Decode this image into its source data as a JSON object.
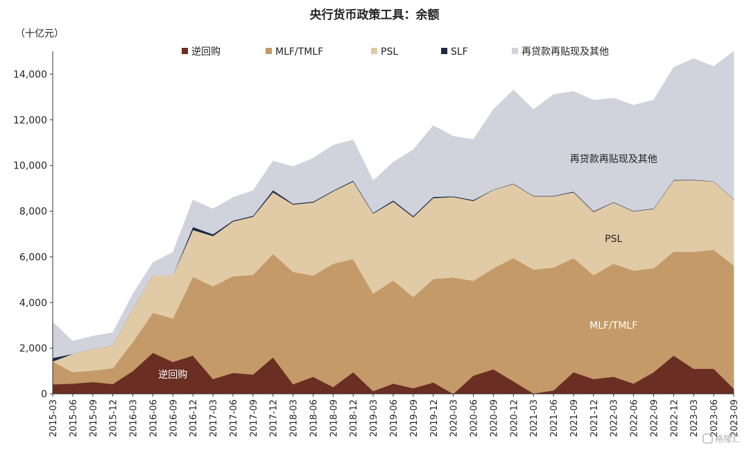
{
  "chart_data": {
    "type": "area",
    "stacked": true,
    "title": "央行货币政策工具：余额",
    "unit_label": "（十亿元）",
    "ylim": [
      0,
      15000
    ],
    "yticks": [
      0,
      2000,
      4000,
      6000,
      8000,
      10000,
      12000,
      14000
    ],
    "ytick_labels": [
      "0",
      "2,000",
      "4,000",
      "6,000",
      "8,000",
      "10,000",
      "12,000",
      "14,000"
    ],
    "x": [
      "2015-03",
      "2015-06",
      "2015-09",
      "2015-12",
      "2016-03",
      "2016-06",
      "2016-09",
      "2016-12",
      "2017-03",
      "2017-06",
      "2017-09",
      "2017-12",
      "2018-03",
      "2018-06",
      "2018-09",
      "2018-12",
      "2019-03",
      "2019-06",
      "2019-09",
      "2019-12",
      "2020-03",
      "2020-06",
      "2020-09",
      "2020-12",
      "2021-03",
      "2021-06",
      "2021-09",
      "2021-12",
      "2022-03",
      "2022-06",
      "2022-09",
      "2022-12",
      "2023-03",
      "2023-06",
      "2023-09"
    ],
    "legend_position": "top",
    "series": [
      {
        "name": "逆回购",
        "color": "#6b2e22",
        "values": [
          420,
          450,
          520,
          430,
          1000,
          1800,
          1400,
          1680,
          650,
          920,
          850,
          1600,
          420,
          750,
          300,
          950,
          120,
          450,
          250,
          500,
          0,
          800,
          1080,
          550,
          20,
          150,
          950,
          650,
          750,
          450,
          950,
          1680,
          1100,
          1100,
          230
        ]
      },
      {
        "name": "MLF/TMLF",
        "color": "#c49a68",
        "values": [
          1000,
          500,
          500,
          700,
          1270,
          1750,
          1900,
          3450,
          4060,
          4230,
          4360,
          4530,
          4920,
          4430,
          5400,
          4950,
          4270,
          4520,
          3990,
          4530,
          5100,
          4150,
          4420,
          5400,
          5420,
          5380,
          5000,
          4550,
          4950,
          4950,
          4550,
          4550,
          5120,
          5210,
          5390
        ]
      },
      {
        "name": "PSL",
        "color": "#e1cba7",
        "values": [
          0,
          800,
          950,
          1000,
          1500,
          1650,
          1900,
          2050,
          2200,
          2400,
          2550,
          2700,
          2950,
          3200,
          3170,
          3400,
          3510,
          3450,
          3500,
          3550,
          3520,
          3500,
          3440,
          3240,
          3210,
          3120,
          2880,
          2770,
          2680,
          2590,
          2600,
          3120,
          3140,
          2990,
          2900
        ]
      },
      {
        "name": "SLF",
        "color": "#1b2a44",
        "values": [
          150,
          0,
          0,
          0,
          0,
          0,
          0,
          130,
          80,
          40,
          40,
          90,
          40,
          40,
          30,
          40,
          30,
          50,
          50,
          50,
          30,
          40,
          10,
          20,
          20,
          20,
          30,
          30,
          20,
          20,
          20,
          20,
          20,
          10,
          10
        ]
      },
      {
        "name": "再贷款再贴现及其他",
        "color": "#d0d3dc",
        "values": [
          1570,
          560,
          560,
          550,
          600,
          550,
          1000,
          1180,
          1110,
          1010,
          1100,
          1280,
          1620,
          1900,
          1990,
          1780,
          1400,
          1680,
          2900,
          3120,
          2630,
          2650,
          3500,
          4100,
          3780,
          4430,
          4390,
          4860,
          4550,
          4630,
          4750,
          4930,
          5300,
          5030,
          6470
        ]
      }
    ],
    "annotations": [
      {
        "text": "逆回购",
        "x": "2016-09",
        "y": 850,
        "color": "#ffffff"
      },
      {
        "text": "MLF/TMLF",
        "x": "2022-03",
        "y": 3000,
        "color": "#ffffff"
      },
      {
        "text": "PSL",
        "x": "2022-03",
        "y": 6800,
        "color": "#222222"
      },
      {
        "text": "再贷款再贴现及其他",
        "x": "2022-03",
        "y": 10300,
        "color": "#222222"
      }
    ]
  },
  "watermark": "格隆汇"
}
